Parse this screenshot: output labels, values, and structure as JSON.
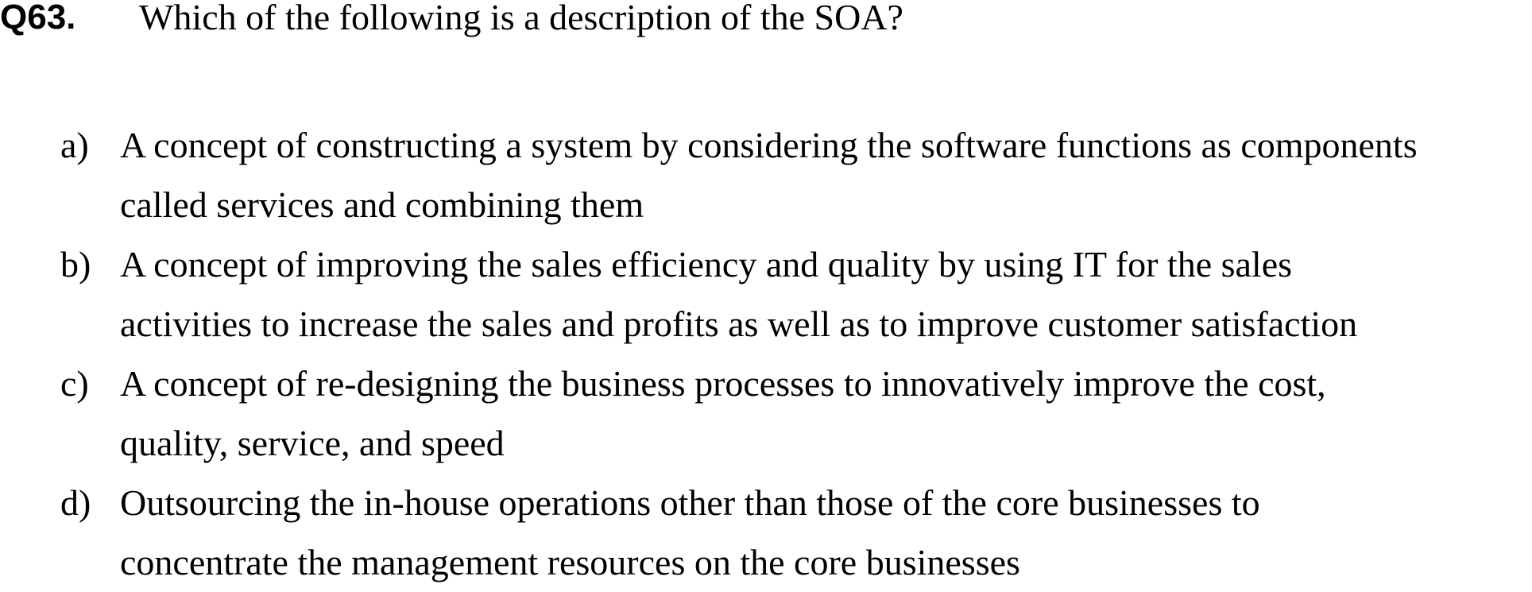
{
  "question": {
    "number": "Q63.",
    "text": "Which of the following is a description of the SOA?"
  },
  "options": [
    {
      "letter": "a)",
      "lines": [
        "A concept of constructing a system by considering the software functions as components",
        "called services and combining them"
      ]
    },
    {
      "letter": "b)",
      "lines": [
        "A concept of improving the sales efficiency and quality by using IT for the sales",
        "activities to increase the sales and profits as well as to improve customer satisfaction"
      ]
    },
    {
      "letter": "c)",
      "lines": [
        "A concept of re-designing the business processes to innovatively improve the cost,",
        "quality, service, and speed"
      ]
    },
    {
      "letter": "d)",
      "lines": [
        "Outsourcing the in-house operations other than those of the core businesses to",
        "concentrate the management resources on the core businesses"
      ]
    }
  ]
}
